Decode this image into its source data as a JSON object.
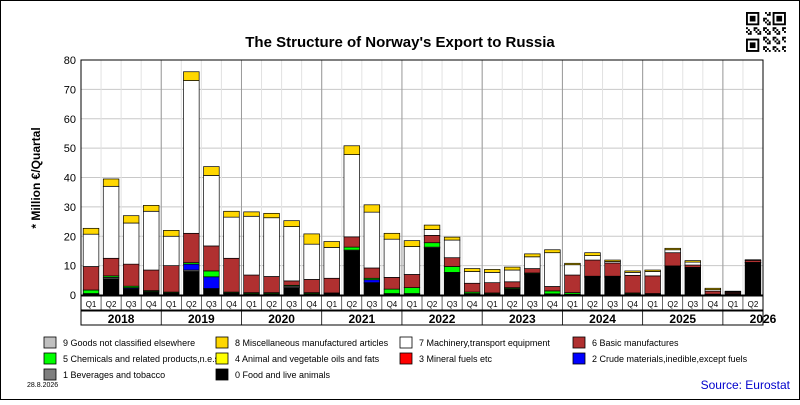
{
  "chart_data": {
    "type": "bar",
    "stacked": true,
    "title": "The Structure of Norway's Export to Russia",
    "ylabel": "* Million €/Quartal",
    "xlabel": "",
    "ylim": [
      0,
      80
    ],
    "yticks": [
      0,
      10,
      20,
      30,
      40,
      50,
      60,
      70,
      80
    ],
    "grid": true,
    "legend": "bottom",
    "date_stamp": "28.8.2026",
    "source": "Source: Eurostat",
    "years": [
      "2018",
      "2019",
      "2020",
      "2021",
      "2022",
      "2023",
      "2024",
      "2025",
      "2026"
    ],
    "categories": [
      "2018 Q1",
      "2018 Q2",
      "2018 Q3",
      "2018 Q4",
      "2019 Q1",
      "2019 Q2",
      "2019 Q3",
      "2019 Q4",
      "2020 Q1",
      "2020 Q2",
      "2020 Q3",
      "2020 Q4",
      "2021 Q1",
      "2021 Q2",
      "2021 Q3",
      "2021 Q4",
      "2022 Q1",
      "2022 Q2",
      "2022 Q3",
      "2022 Q4",
      "2023 Q1",
      "2023 Q2",
      "2023 Q3",
      "2023 Q4",
      "2024 Q1",
      "2024 Q2",
      "2024 Q3",
      "2024 Q4",
      "2025 Q1",
      "2025 Q2",
      "2025 Q3",
      "2025 Q4",
      "2026 Q1",
      "2026 Q2"
    ],
    "quarter_labels": [
      "Q1",
      "Q2",
      "Q3",
      "Q4",
      "Q1",
      "Q2",
      "Q3",
      "Q4",
      "Q1",
      "Q2",
      "Q3",
      "Q4",
      "Q1",
      "Q2",
      "Q3",
      "Q4",
      "Q1",
      "Q2",
      "Q3",
      "Q4",
      "Q1",
      "Q2",
      "Q3",
      "Q4",
      "Q1",
      "Q2",
      "Q3",
      "Q4",
      "Q1",
      "Q2",
      "Q3",
      "Q4",
      "Q1",
      "Q2"
    ],
    "series": [
      {
        "name": "0 Food and live animals",
        "color": "#000000",
        "values": [
          0.3,
          5.5,
          2,
          1,
          0.5,
          8,
          2,
          0.5,
          0.3,
          0.3,
          2.5,
          0.3,
          0.3,
          15,
          4,
          0.3,
          0.3,
          16,
          7.5,
          0.3,
          0.3,
          2,
          7,
          0.3,
          0.2,
          6,
          6,
          0.3,
          0.2,
          9.5,
          9,
          0.2,
          0.5,
          11
        ]
      },
      {
        "name": "1 Beverages and tobacco",
        "color": "#7f7f7f",
        "values": [
          0.2,
          0.5,
          0.2,
          0.2,
          0.2,
          0.5,
          0.2,
          0.2,
          0.2,
          0.2,
          0.5,
          0.2,
          0.2,
          0.3,
          0.2,
          0.2,
          0.2,
          0.3,
          0.2,
          0.2,
          0.1,
          0.2,
          0.2,
          0.1,
          0.1,
          0.2,
          0.2,
          0.1,
          0.1,
          0.2,
          0.2,
          0,
          0,
          0.1
        ]
      },
      {
        "name": "2 Crude materials,inedible,except fuels",
        "color": "#0000ff",
        "values": [
          0,
          0,
          0.3,
          0,
          0,
          2,
          4,
          0,
          0,
          0,
          0,
          0,
          0,
          0,
          1,
          0,
          0,
          0,
          0,
          0,
          0,
          0,
          0,
          0,
          0,
          0,
          0,
          0,
          0,
          0,
          0,
          0,
          0,
          0
        ]
      },
      {
        "name": "3 Mineral fuels etc",
        "color": "#ff0000",
        "values": [
          0,
          0,
          0,
          0,
          0,
          0,
          0,
          0,
          0,
          0,
          0,
          0,
          0,
          0,
          0,
          0,
          0,
          0,
          0,
          0,
          0,
          0,
          0,
          0,
          0,
          0,
          0,
          0,
          0,
          0,
          0,
          0,
          0,
          0
        ]
      },
      {
        "name": "4 Animal and vegetable oils and fats",
        "color": "#ffff00",
        "values": [
          0,
          0,
          0,
          0,
          0,
          0,
          0,
          0,
          0,
          0,
          0,
          0,
          0,
          0,
          0,
          0,
          0,
          0,
          0,
          0,
          0,
          0,
          0,
          0,
          0,
          0,
          0,
          0,
          0,
          0,
          0,
          0,
          0,
          0
        ]
      },
      {
        "name": "5 Chemicals and related products,n.e.s.",
        "color": "#00ff00",
        "values": [
          1.2,
          0.5,
          0.5,
          0.3,
          0.3,
          0.5,
          2,
          0.3,
          0.3,
          0.3,
          0.3,
          0.3,
          0.2,
          1,
          0.5,
          1.5,
          2,
          1.5,
          2,
          0.5,
          0.3,
          0.3,
          0.3,
          1,
          0.5,
          0.2,
          0.2,
          0.3,
          0.2,
          0.2,
          0.2,
          0.1,
          0,
          0
        ]
      },
      {
        "name": "6 Basic manufactures",
        "color": "#b03030",
        "values": [
          8,
          6,
          7.5,
          7,
          9,
          10,
          8.5,
          11.5,
          6,
          5.5,
          1.5,
          4.5,
          5,
          3.5,
          3.5,
          4,
          4.5,
          2.5,
          3,
          3,
          3.5,
          2,
          1.5,
          1.5,
          6,
          5.5,
          4.5,
          6,
          6,
          4.5,
          0.8,
          1,
          0.4,
          0.7
        ]
      },
      {
        "name": "7 Machinery,transport equipment",
        "color": "#ffffff",
        "values": [
          11,
          24.5,
          14,
          20,
          10,
          52,
          24,
          14,
          20,
          20,
          18.5,
          12,
          10.5,
          28,
          19,
          13,
          9.5,
          2,
          6,
          4,
          3.5,
          4,
          4,
          11.5,
          3.5,
          1.5,
          0.5,
          1,
          1.5,
          1,
          1,
          0.5,
          0.2,
          0
        ]
      },
      {
        "name": "8 Miscellaneous manufactured articles",
        "color": "#ffd700",
        "values": [
          2,
          2.5,
          2.5,
          2,
          2,
          3,
          3,
          2,
          1.5,
          1.5,
          2,
          3.5,
          2,
          3,
          2.5,
          2,
          2,
          1.5,
          1,
          1,
          1,
          1,
          1,
          1,
          0.5,
          1,
          0.5,
          0.5,
          0.5,
          0.5,
          0.5,
          0.5,
          0.2,
          0.2
        ]
      },
      {
        "name": "9 Goods not classified elsewhere",
        "color": "#c0c0c0",
        "values": [
          0,
          0,
          0,
          0,
          0,
          0,
          0,
          0,
          0,
          0,
          0,
          0,
          0,
          0,
          0,
          0,
          0,
          0,
          0,
          0,
          0,
          0,
          0,
          0,
          0,
          0,
          0,
          0,
          0,
          0,
          0,
          0,
          0,
          0
        ]
      }
    ],
    "legend_order": [
      9,
      8,
      7,
      6,
      5,
      4,
      3,
      2,
      1,
      0
    ]
  },
  "qr_icon": "qr-code-icon"
}
